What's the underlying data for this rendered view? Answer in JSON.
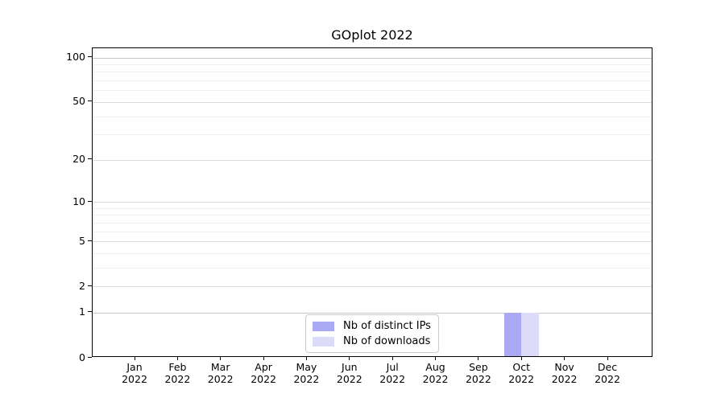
{
  "chart_data": {
    "type": "bar",
    "title": "GOplot 2022",
    "categories": [
      "Jan",
      "Feb",
      "Mar",
      "Apr",
      "May",
      "Jun",
      "Jul",
      "Aug",
      "Sep",
      "Oct",
      "Nov",
      "Dec"
    ],
    "category_year": "2022",
    "series": [
      {
        "name": "Nb of distinct IPs",
        "color": "#a9a9f4",
        "values": [
          0,
          0,
          0,
          0,
          0,
          0,
          0,
          0,
          0,
          1,
          0,
          0
        ]
      },
      {
        "name": "Nb of downloads",
        "color": "#dcdcf8",
        "values": [
          0,
          0,
          0,
          0,
          0,
          0,
          0,
          0,
          0,
          1,
          0,
          0
        ]
      }
    ],
    "y_axis": {
      "scale": "log1p",
      "major_ticks": [
        0,
        1,
        2,
        5,
        10,
        20,
        50,
        100
      ],
      "minor_ticks": [
        3,
        4,
        6,
        7,
        8,
        9,
        30,
        40,
        60,
        70,
        80,
        90
      ],
      "ylim": [
        0,
        116
      ]
    },
    "x_axis": {
      "ticks_per_month": true
    },
    "grid": "horizontal",
    "legend_position": "bottom-center",
    "colors": {
      "grid_major": "#dcdcdc",
      "grid_major_emphasis": "#c6c6c6",
      "grid_minor": "#f0f0f0",
      "spine": "#000000"
    }
  }
}
